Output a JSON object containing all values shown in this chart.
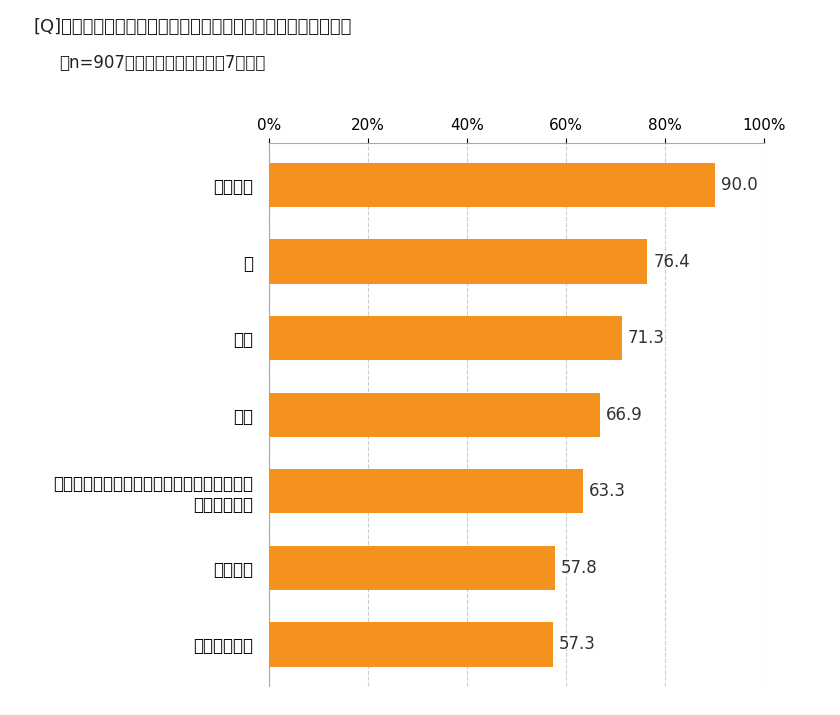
{
  "title_line1": "[Q]ふだん、ご自宅で使う頻度が高い調味料をお選びください。",
  "title_line2": "（n=907・複数回答のうち上位7項目）",
  "categories": [
    "しょうゆ",
    "塩",
    "みそ",
    "砂糖",
    "食用油・油脂類（オリーブオイル、ごま油、\nバターなど）",
    "こしょう",
    "料理酒・清酒"
  ],
  "values": [
    90.0,
    76.4,
    71.3,
    66.9,
    63.3,
    57.8,
    57.3
  ],
  "bar_color": "#F5921E",
  "value_label_color": "#333333",
  "background_color": "#FFFFFF",
  "xlim": [
    0,
    100
  ],
  "xtick_positions": [
    0,
    20,
    40,
    60,
    80,
    100
  ],
  "xtick_labels": [
    "0%",
    "20%",
    "40%",
    "60%",
    "80%",
    "100%"
  ],
  "title_fontsize": 13,
  "subtitle_fontsize": 12,
  "category_fontsize": 12,
  "value_fontsize": 12,
  "tick_fontsize": 11,
  "grid_color": "#CCCCCC",
  "grid_linestyle": "--",
  "grid_linewidth": 0.8,
  "bar_height": 0.58,
  "spine_color": "#AAAAAA"
}
